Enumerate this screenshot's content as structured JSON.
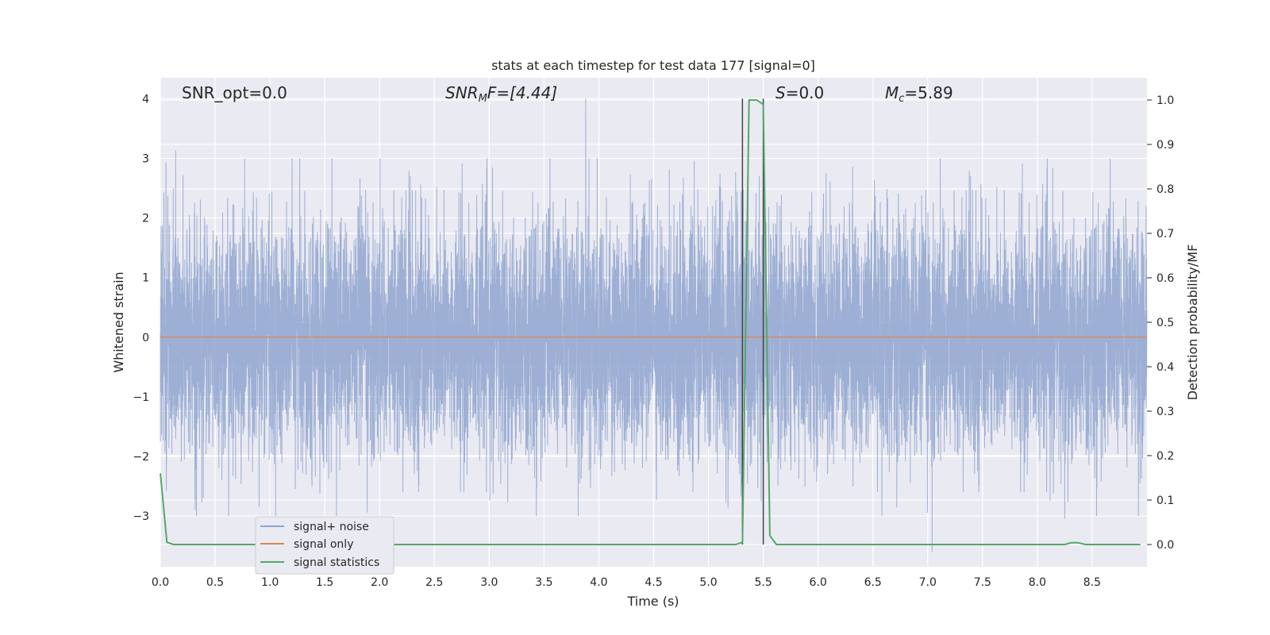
{
  "chart_data": {
    "type": "line",
    "title": "stats at each timestep for test data 177 [signal=0]",
    "xlabel": "Time (s)",
    "ylabel_left": "Whitened strain",
    "ylabel_right": "Detection probability/MF",
    "xlim": [
      0.0,
      9.0
    ],
    "ylim_left": [
      -3.85,
      4.35
    ],
    "ylim_right": [
      -0.05,
      1.05
    ],
    "xticks": [
      "0.0",
      "0.5",
      "1.0",
      "1.5",
      "2.0",
      "2.5",
      "3.0",
      "3.5",
      "4.0",
      "4.5",
      "5.0",
      "5.5",
      "6.0",
      "6.5",
      "7.0",
      "7.5",
      "8.0",
      "8.5"
    ],
    "yticks_left": [
      "4",
      "3",
      "2",
      "1",
      "0",
      "−1",
      "−2",
      "−3"
    ],
    "yticks_right": [
      "1.0",
      "0.9",
      "0.8",
      "0.7",
      "0.6",
      "0.5",
      "0.4",
      "0.3",
      "0.2",
      "0.1",
      "0.0"
    ],
    "grid": true,
    "legend_position": "lower-left",
    "annotations": {
      "snr_opt": "SNR_opt=0.0",
      "snr_mf_prefix": "SNR",
      "snr_mf_sub": "M",
      "snr_mf_suffix": "F=[4.44]",
      "s_prefix": "S",
      "s_suffix": "=0.0",
      "mc_prefix": "M",
      "mc_sub": "c",
      "mc_suffix": "=5.89"
    },
    "series": [
      {
        "name": "signal+ noise",
        "color": "#8fa4cf",
        "description_values": "whitened strain noise, approximately N(0,1), range about -3.5 to 4.0 over 0–9 s",
        "sample_rate": 1024,
        "peaks": [
          [
            0.14,
            3.13
          ],
          [
            3.88,
            4.0
          ],
          [
            7.04,
            -3.6
          ],
          [
            8.25,
            -3.05
          ],
          [
            0.9,
            -2.85
          ],
          [
            5.48,
            -2.75
          ]
        ]
      },
      {
        "name": "signal only",
        "color": "#dd8452",
        "values_constant": 0.0
      },
      {
        "name": "signal statistics",
        "color": "#55a868",
        "axis": "right",
        "x": [
          0.0,
          0.06,
          0.12,
          0.5,
          1.0,
          2.0,
          3.0,
          4.0,
          5.0,
          5.25,
          5.31,
          5.37,
          5.44,
          5.5,
          5.56,
          5.62,
          6.0,
          7.0,
          8.0,
          8.25,
          8.31,
          8.37,
          8.44,
          8.5,
          8.94
        ],
        "y": [
          0.16,
          0.005,
          0.0,
          0.0,
          0.0,
          0.0,
          0.0,
          0.0,
          0.0,
          0.0,
          0.005,
          1.0,
          1.0,
          0.99,
          0.02,
          0.0,
          0.0,
          0.0,
          0.0,
          0.0,
          0.004,
          0.004,
          0.0,
          0.0,
          0.0
        ]
      }
    ],
    "vertical_markers": [
      5.31,
      5.5
    ],
    "legend": [
      "signal+ noise",
      "signal only",
      "signal statistics"
    ]
  }
}
